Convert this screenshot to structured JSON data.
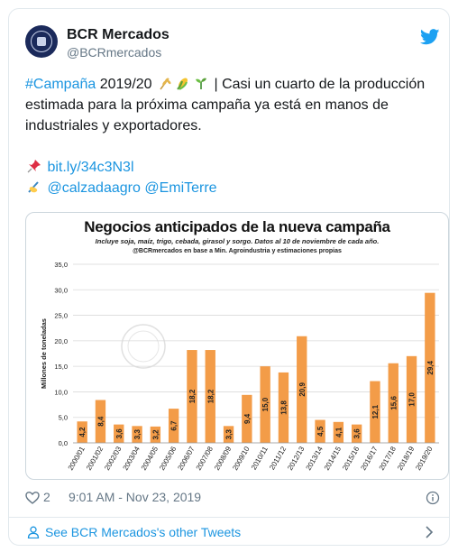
{
  "tweet": {
    "display_name": "BCR Mercados",
    "handle": "@BCRmercados",
    "hashtag": "#Campaña",
    "line1_rest": "2019/20",
    "line1_tail": "| Casi un cuarto de la producción",
    "line2": "estimada para la próxima campaña ya está en manos de",
    "line3": "industriales y exportadores.",
    "link": "bit.ly/34c3N3l",
    "mention1": "@calzadaagro",
    "mention2": "@EmiTerre",
    "like_count": "2",
    "timestamp": "9:01 AM - Nov 23, 2019",
    "footer_link": "See BCR Mercados's other Tweets"
  },
  "icons": [
    "twitter-bird-icon",
    "wheat-icon",
    "corn-icon",
    "seedling-icon",
    "pushpin-icon",
    "writing-hand-icon",
    "heart-icon",
    "info-icon",
    "person-icon",
    "chevron-right-icon"
  ],
  "colors": {
    "accent": "#1b95e0",
    "bar": "#f39c48",
    "muted": "#657786"
  },
  "chart_data": {
    "type": "bar",
    "title": "Negocios anticipados de la nueva campaña",
    "subtitle": "Incluye soja, maíz, trigo, cebada, girasol y sorgo. Datos al 10 de noviembre de cada año.",
    "source": "@BCRmercados en base a Min. Agroindustria y estimaciones propias",
    "ylabel": "Millones de toneladas",
    "ylim": [
      0,
      35
    ],
    "yticks": [
      "0,0",
      "5,0",
      "10,0",
      "15,0",
      "20,0",
      "25,0",
      "30,0",
      "35,0"
    ],
    "categories": [
      "2000/01",
      "2001/02",
      "2002/03",
      "2003/04",
      "2004/05",
      "2005/06",
      "2006/07",
      "2007/08",
      "2008/09",
      "2009/10",
      "2010/11",
      "2011/12",
      "2012/13",
      "2013/14",
      "2014/15",
      "2015/16",
      "2016/17",
      "2017/18",
      "2018/19",
      "2019/20"
    ],
    "values": [
      4.2,
      8.4,
      3.6,
      3.3,
      3.2,
      6.7,
      18.2,
      18.2,
      3.3,
      9.4,
      15.0,
      13.8,
      20.9,
      4.5,
      4.1,
      3.6,
      12.1,
      15.6,
      17.0,
      29.4
    ],
    "labels": [
      "4,2",
      "8,4",
      "3,6",
      "3,3",
      "3,2",
      "6,7",
      "18,2",
      "18,2",
      "3,3",
      "9,4",
      "15,0",
      "13,8",
      "20,9",
      "4,5",
      "4,1",
      "3,6",
      "12,1",
      "15,6",
      "17,0",
      "29,4"
    ],
    "grid": true,
    "legend": "none"
  }
}
